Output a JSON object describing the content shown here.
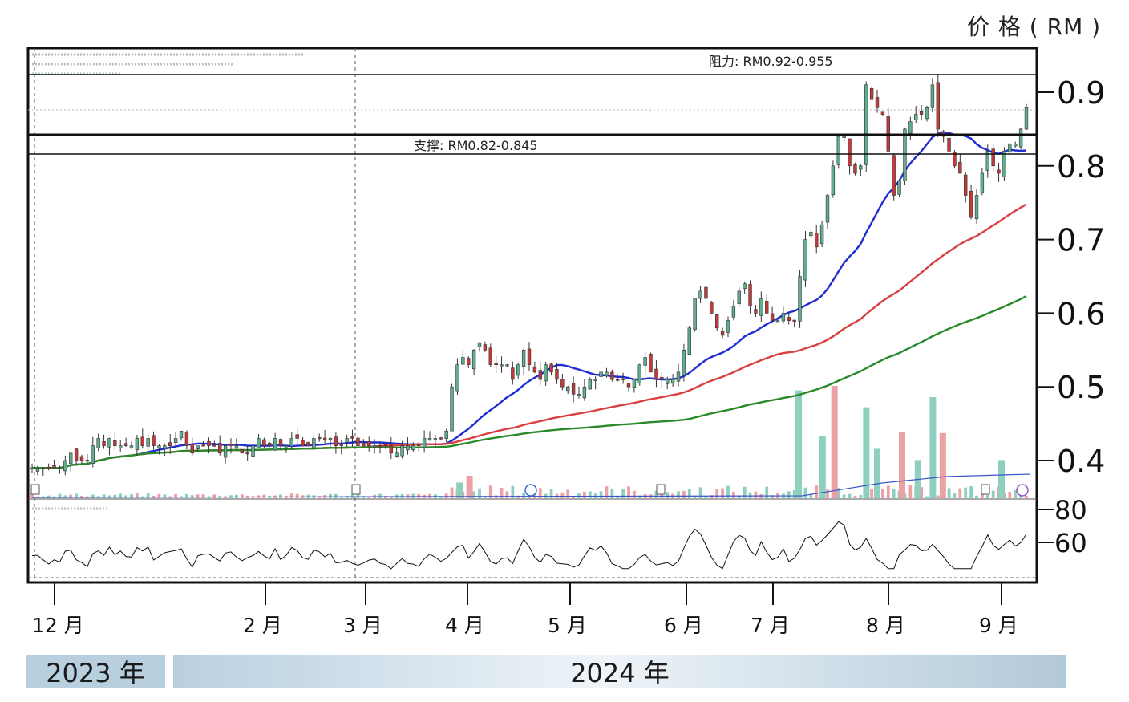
{
  "chart_data": {
    "type": "candlestick",
    "unit_label": "价 格 ( RM )",
    "resistance_label": "阻力: RM0.92-0.955",
    "support_label": "支撑: RM0.82-0.845",
    "resistance_range": [
      0.92,
      0.955
    ],
    "support_range": [
      0.82,
      0.845
    ],
    "ylim": [
      0.37,
      0.95
    ],
    "y_ticks": [
      0.4,
      0.5,
      0.6,
      0.7,
      0.8,
      0.9
    ],
    "y_tick_labels": [
      "0.4",
      "0.5",
      "0.6",
      "0.7",
      "0.8",
      "0.9"
    ],
    "rsi_ylim": [
      40,
      90
    ],
    "rsi_ticks": [
      60,
      80
    ],
    "rsi_tick_labels": [
      "60",
      "80"
    ],
    "x_ticks": [
      "12 月",
      "2 月",
      "3 月",
      "4 月",
      "5 月",
      "6 月",
      "7 月",
      "8 月",
      "9 月"
    ],
    "years": [
      "2023 年",
      "2024 年"
    ],
    "close_series": [
      0.39,
      0.39,
      0.39,
      0.39,
      0.39,
      0.39,
      0.4,
      0.41,
      0.4,
      0.4,
      0.4,
      0.42,
      0.43,
      0.42,
      0.43,
      0.42,
      0.42,
      0.42,
      0.42,
      0.43,
      0.42,
      0.43,
      0.42,
      0.42,
      0.42,
      0.42,
      0.43,
      0.44,
      0.42,
      0.41,
      0.42,
      0.42,
      0.42,
      0.42,
      0.41,
      0.42,
      0.42,
      0.42,
      0.41,
      0.41,
      0.42,
      0.43,
      0.42,
      0.42,
      0.43,
      0.42,
      0.42,
      0.43,
      0.43,
      0.42,
      0.42,
      0.43,
      0.43,
      0.43,
      0.43,
      0.42,
      0.42,
      0.43,
      0.43,
      0.42,
      0.42,
      0.42,
      0.42,
      0.42,
      0.42,
      0.41,
      0.41,
      0.42,
      0.42,
      0.42,
      0.42,
      0.43,
      0.43,
      0.43,
      0.43,
      0.44,
      0.5,
      0.53,
      0.54,
      0.53,
      0.55,
      0.56,
      0.55,
      0.53,
      0.53,
      0.53,
      0.53,
      0.51,
      0.53,
      0.55,
      0.53,
      0.52,
      0.51,
      0.53,
      0.52,
      0.51,
      0.5,
      0.5,
      0.49,
      0.49,
      0.5,
      0.51,
      0.51,
      0.52,
      0.52,
      0.51,
      0.51,
      0.51,
      0.5,
      0.51,
      0.53,
      0.54,
      0.52,
      0.51,
      0.51,
      0.51,
      0.51,
      0.52,
      0.55,
      0.58,
      0.62,
      0.63,
      0.62,
      0.6,
      0.58,
      0.57,
      0.59,
      0.61,
      0.63,
      0.64,
      0.61,
      0.6,
      0.62,
      0.6,
      0.59,
      0.59,
      0.6,
      0.59,
      0.59,
      0.65,
      0.7,
      0.71,
      0.69,
      0.72,
      0.76,
      0.8,
      0.84,
      0.84,
      0.8,
      0.79,
      0.8,
      0.91,
      0.89,
      0.88,
      0.87,
      0.82,
      0.76,
      0.78,
      0.85,
      0.86,
      0.87,
      0.87,
      0.88,
      0.91,
      0.85,
      0.84,
      0.82,
      0.8,
      0.79,
      0.76,
      0.73,
      0.76,
      0.79,
      0.82,
      0.8,
      0.79,
      0.82,
      0.83,
      0.83,
      0.85,
      0.88
    ],
    "ma_periods": [
      20,
      60,
      120
    ],
    "volume_tall_bars": [
      {
        "x": 0.43,
        "h": 0.14
      },
      {
        "x": 0.44,
        "h": 0.2
      },
      {
        "x": 0.771,
        "h": 0.96
      },
      {
        "x": 0.795,
        "h": 0.55
      },
      {
        "x": 0.807,
        "h": 1.0
      },
      {
        "x": 0.839,
        "h": 0.81
      },
      {
        "x": 0.85,
        "h": 0.44
      },
      {
        "x": 0.875,
        "h": 0.59
      },
      {
        "x": 0.891,
        "h": 0.34
      },
      {
        "x": 0.906,
        "h": 0.9
      },
      {
        "x": 0.916,
        "h": 0.58
      },
      {
        "x": 0.975,
        "h": 0.34
      }
    ]
  }
}
